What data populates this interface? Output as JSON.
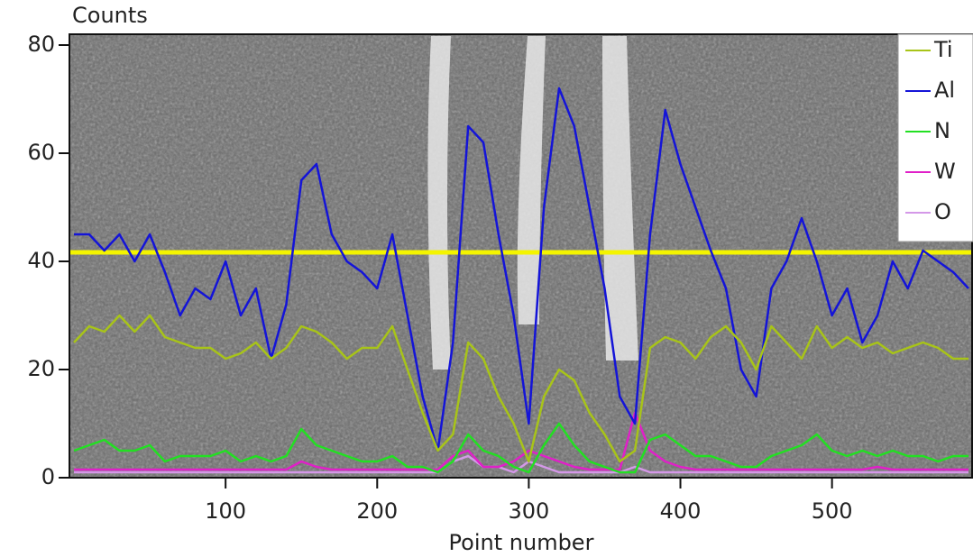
{
  "chart_data": {
    "type": "line",
    "y_label": "Counts",
    "x_label": "Point number",
    "x": [
      0,
      10,
      20,
      30,
      40,
      50,
      60,
      70,
      80,
      90,
      100,
      110,
      120,
      130,
      140,
      150,
      160,
      170,
      180,
      190,
      200,
      210,
      220,
      230,
      240,
      250,
      260,
      270,
      280,
      290,
      300,
      310,
      320,
      330,
      340,
      350,
      360,
      370,
      380,
      390,
      400,
      410,
      420,
      430,
      440,
      450,
      460,
      470,
      480,
      490,
      500,
      510,
      520,
      530,
      540,
      550,
      560,
      570,
      580,
      590
    ],
    "xlim": [
      -3,
      593
    ],
    "xticks": [
      100,
      200,
      300,
      400,
      500
    ],
    "ylim": [
      0,
      82
    ],
    "yticks": [
      0,
      20,
      40,
      60,
      80
    ],
    "grid": false,
    "legend": "top-right",
    "series": [
      {
        "name": "Ti",
        "color": "#a8c418",
        "values": [
          25,
          28,
          27,
          30,
          27,
          30,
          26,
          25,
          24,
          24,
          22,
          23,
          25,
          22,
          24,
          28,
          27,
          25,
          22,
          24,
          24,
          28,
          20,
          12,
          5,
          8,
          25,
          22,
          15,
          10,
          3,
          15,
          20,
          18,
          12,
          8,
          3,
          5,
          24,
          26,
          25,
          22,
          26,
          28,
          25,
          20,
          28,
          25,
          22,
          28,
          24,
          26,
          24,
          25,
          23,
          24,
          25,
          24,
          22,
          22
        ]
      },
      {
        "name": "Al",
        "color": "#1414d8",
        "values": [
          45,
          45,
          42,
          45,
          40,
          45,
          38,
          30,
          35,
          33,
          40,
          30,
          35,
          22,
          32,
          55,
          58,
          45,
          40,
          38,
          35,
          45,
          30,
          15,
          5,
          25,
          65,
          62,
          45,
          30,
          10,
          50,
          72,
          65,
          50,
          35,
          15,
          10,
          45,
          68,
          58,
          50,
          42,
          35,
          20,
          15,
          35,
          40,
          48,
          40,
          30,
          35,
          25,
          30,
          40,
          35,
          42,
          40,
          38,
          35
        ]
      },
      {
        "name": "N",
        "color": "#22e022",
        "values": [
          5,
          6,
          7,
          5,
          5,
          6,
          3,
          4,
          4,
          4,
          5,
          3,
          4,
          3,
          4,
          9,
          6,
          5,
          4,
          3,
          3,
          4,
          2,
          2,
          1,
          3,
          8,
          5,
          4,
          2,
          1,
          6,
          10,
          6,
          3,
          2,
          1,
          1,
          7,
          8,
          6,
          4,
          4,
          3,
          2,
          2,
          4,
          5,
          6,
          8,
          5,
          4,
          5,
          4,
          5,
          4,
          4,
          3,
          4,
          4
        ]
      },
      {
        "name": "W",
        "color": "#e020c8",
        "values": [
          1.5,
          1.5,
          1.5,
          1.5,
          1.5,
          1.5,
          1.5,
          1.5,
          1.5,
          1.5,
          1.5,
          1.5,
          1.5,
          1.5,
          1.5,
          3,
          2,
          1.5,
          1.5,
          1.5,
          1.5,
          1.5,
          1.5,
          1.5,
          1.5,
          4,
          5,
          2,
          2,
          3,
          5,
          4,
          3,
          2,
          1.5,
          1.5,
          1.5,
          12,
          5,
          3,
          2,
          1.5,
          1.5,
          1.5,
          1.5,
          1.5,
          1.5,
          1.5,
          1.5,
          1.5,
          1.5,
          1.5,
          1.5,
          2,
          1.5,
          1.5,
          1.5,
          1.5,
          1.5,
          1.5
        ]
      },
      {
        "name": "O",
        "color": "#d498e8",
        "values": [
          1,
          1,
          1,
          1,
          1,
          1,
          1,
          1,
          1,
          1,
          1,
          1,
          1,
          1,
          1,
          1,
          1,
          1,
          1,
          1,
          1,
          1,
          1,
          1,
          1,
          3,
          4,
          2,
          2,
          1,
          3,
          2,
          1,
          1,
          1,
          1,
          1,
          2,
          1,
          1,
          1,
          1,
          1,
          1,
          1,
          1,
          1,
          1,
          1,
          1,
          1,
          1,
          1,
          1,
          1,
          1,
          1,
          1,
          1,
          1
        ]
      }
    ]
  }
}
